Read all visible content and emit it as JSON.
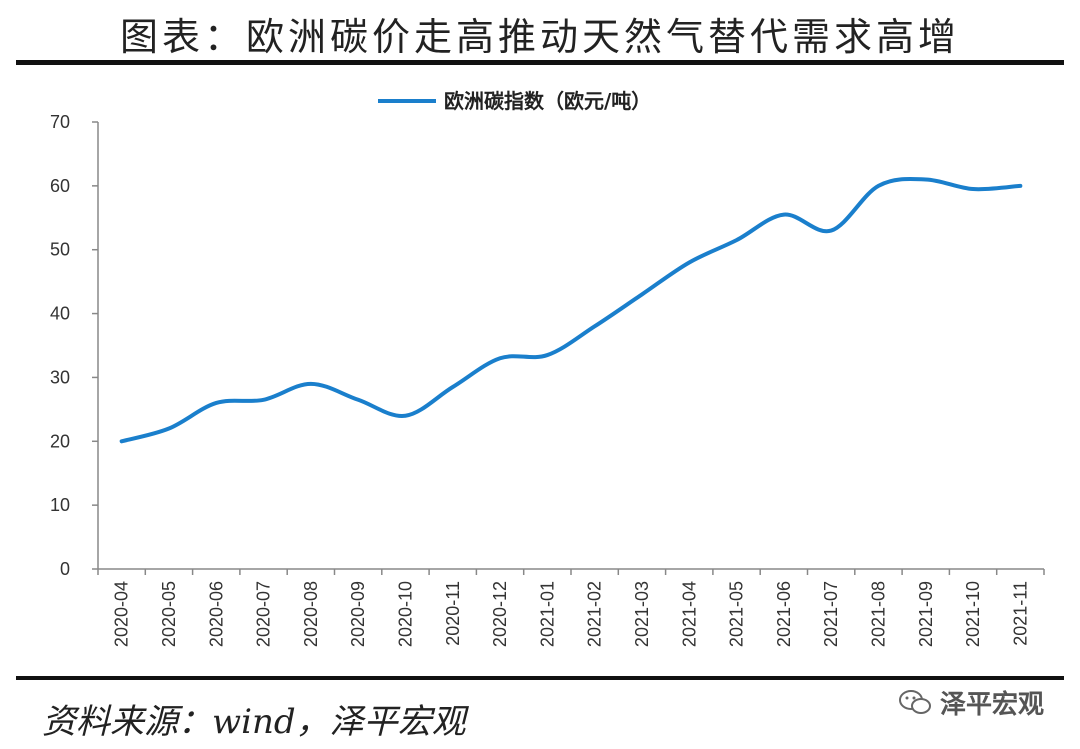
{
  "title": "图表：欧洲碳价走高推动天然气替代需求高增",
  "source": "资料来源：wind，泽平宏观",
  "watermark": "泽平宏观",
  "colors": {
    "line": "#1a7fcc",
    "axis": "#888888"
  },
  "chart_data": {
    "type": "line",
    "categories": [
      "2020-04",
      "2020-05",
      "2020-06",
      "2020-07",
      "2020-08",
      "2020-09",
      "2020-10",
      "2020-11",
      "2020-12",
      "2021-01",
      "2021-02",
      "2021-03",
      "2021-04",
      "2021-05",
      "2021-06",
      "2021-07",
      "2021-08",
      "2021-09",
      "2021-10",
      "2021-11"
    ],
    "series": [
      {
        "name": "欧洲碳指数（欧元/吨）",
        "values": [
          20,
          22,
          26,
          26.5,
          29,
          26.5,
          24,
          28.5,
          33,
          33.5,
          38,
          43,
          48,
          51.5,
          55.5,
          53,
          60,
          61,
          59.5,
          60
        ]
      }
    ],
    "ylim": [
      0,
      70
    ],
    "yticks": [
      "0",
      "10",
      "20",
      "30",
      "40",
      "50",
      "60",
      "70"
    ],
    "legend_position": "top-center",
    "grid": false
  }
}
